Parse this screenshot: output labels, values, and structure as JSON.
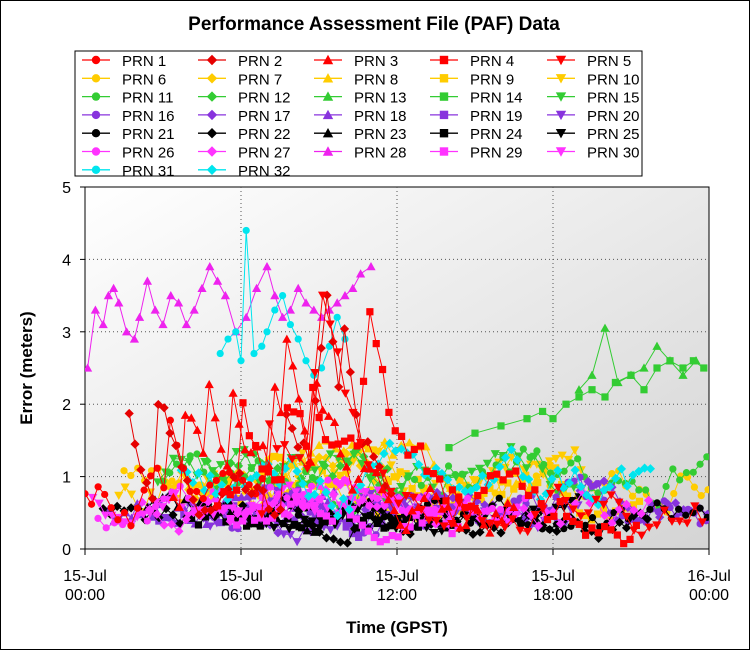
{
  "chart_data": {
    "type": "line",
    "title": "Performance Assessment File (PAF) Data",
    "xlabel": "Time (GPST)",
    "ylabel": "Error (meters)",
    "ylim": [
      0,
      5
    ],
    "yticks": [
      "0",
      "1",
      "2",
      "3",
      "4",
      "5"
    ],
    "xticks": [
      {
        "t": 0,
        "line1": "15-Jul",
        "line2": "00:00"
      },
      {
        "t": 6,
        "line1": "15-Jul",
        "line2": "06:00"
      },
      {
        "t": 12,
        "line1": "15-Jul",
        "line2": "12:00"
      },
      {
        "t": 18,
        "line1": "15-Jul",
        "line2": "18:00"
      },
      {
        "t": 24,
        "line1": "16-Jul",
        "line2": "00:00"
      }
    ],
    "xlim_hours": [
      0,
      24
    ],
    "grid": true,
    "legend_position": "top",
    "series": [
      {
        "name": "PRN 1",
        "color": "#ff0000",
        "marker": "circle"
      },
      {
        "name": "PRN 2",
        "color": "#e60000",
        "marker": "diamond"
      },
      {
        "name": "PRN 3",
        "color": "#ff0000",
        "marker": "triangle-up"
      },
      {
        "name": "PRN 4",
        "color": "#ff0000",
        "marker": "square"
      },
      {
        "name": "PRN 5",
        "color": "#ff0000",
        "marker": "triangle-down"
      },
      {
        "name": "PRN 6",
        "color": "#ffcc00",
        "marker": "circle"
      },
      {
        "name": "PRN 7",
        "color": "#ffcc00",
        "marker": "diamond"
      },
      {
        "name": "PRN 8",
        "color": "#ffcc00",
        "marker": "triangle-up"
      },
      {
        "name": "PRN 9",
        "color": "#ffcc00",
        "marker": "square"
      },
      {
        "name": "PRN 10",
        "color": "#ffcc00",
        "marker": "triangle-down"
      },
      {
        "name": "PRN 11",
        "color": "#33cc33",
        "marker": "circle"
      },
      {
        "name": "PRN 12",
        "color": "#33cc33",
        "marker": "diamond"
      },
      {
        "name": "PRN 13",
        "color": "#33cc33",
        "marker": "triangle-up"
      },
      {
        "name": "PRN 14",
        "color": "#33cc33",
        "marker": "square"
      },
      {
        "name": "PRN 15",
        "color": "#33cc33",
        "marker": "triangle-down"
      },
      {
        "name": "PRN 16",
        "color": "#8833dd",
        "marker": "circle"
      },
      {
        "name": "PRN 17",
        "color": "#8833dd",
        "marker": "diamond"
      },
      {
        "name": "PRN 18",
        "color": "#8833dd",
        "marker": "triangle-up"
      },
      {
        "name": "PRN 19",
        "color": "#8833dd",
        "marker": "square"
      },
      {
        "name": "PRN 20",
        "color": "#8833dd",
        "marker": "triangle-down"
      },
      {
        "name": "PRN 21",
        "color": "#000000",
        "marker": "circle"
      },
      {
        "name": "PRN 22",
        "color": "#000000",
        "marker": "diamond"
      },
      {
        "name": "PRN 23",
        "color": "#000000",
        "marker": "triangle-up"
      },
      {
        "name": "PRN 24",
        "color": "#000000",
        "marker": "square"
      },
      {
        "name": "PRN 25",
        "color": "#000000",
        "marker": "triangle-down"
      },
      {
        "name": "PRN 26",
        "color": "#ff33ff",
        "marker": "circle"
      },
      {
        "name": "PRN 27",
        "color": "#ff33ff",
        "marker": "diamond"
      },
      {
        "name": "PRN 28",
        "color": "#ee22ee",
        "marker": "triangle-up"
      },
      {
        "name": "PRN 29",
        "color": "#ff33ff",
        "marker": "square"
      },
      {
        "name": "PRN 30",
        "color": "#ff33ff",
        "marker": "triangle-down"
      },
      {
        "name": "PRN 31",
        "color": "#00e5ee",
        "marker": "circle"
      },
      {
        "name": "PRN 32",
        "color": "#00e5ee",
        "marker": "diamond"
      }
    ],
    "sampled_values": {
      "PRN 28": {
        "t": [
          0.1,
          0.4,
          0.7,
          0.9,
          1.1,
          1.3,
          1.6,
          1.9,
          2.1,
          2.4,
          2.7,
          3.0,
          3.3,
          3.6,
          3.9,
          4.2,
          4.5,
          4.8,
          5.1,
          5.4,
          5.8,
          6.2,
          6.6,
          7.0,
          7.3,
          7.6,
          7.9,
          8.2,
          8.5,
          8.8,
          9.1,
          9.4,
          9.7,
          10.0,
          10.3,
          10.6,
          11.0
        ],
        "y": [
          2.5,
          3.3,
          3.1,
          3.5,
          3.6,
          3.4,
          3.0,
          2.9,
          3.2,
          3.7,
          3.3,
          3.1,
          3.5,
          3.4,
          3.1,
          3.3,
          3.6,
          3.9,
          3.7,
          3.5,
          3.0,
          3.2,
          3.6,
          3.9,
          3.5,
          3.2,
          3.3,
          3.6,
          3.4,
          3.3,
          3.2,
          3.3,
          3.4,
          3.5,
          3.6,
          3.8,
          3.9
        ]
      },
      "PRN 31": {
        "t": [
          5.2,
          5.5,
          5.8,
          6.0,
          6.2,
          6.5,
          6.8,
          7.0,
          7.3,
          7.6,
          7.9,
          8.2,
          8.5,
          8.8,
          9.1,
          9.4,
          9.7,
          10.0
        ],
        "y": [
          2.7,
          2.9,
          3.0,
          2.6,
          4.4,
          2.7,
          2.8,
          3.0,
          3.3,
          3.5,
          3.1,
          2.9,
          2.6,
          2.4,
          2.5,
          2.8,
          3.2,
          2.9
        ]
      },
      "PRN 14": {
        "t": [
          14,
          15,
          16,
          17,
          17.6,
          18,
          18.5,
          19,
          19.5,
          20,
          20.4,
          21,
          21.5,
          22,
          22.5,
          23,
          23.4,
          23.8
        ],
        "y": [
          1.4,
          1.6,
          1.7,
          1.8,
          1.9,
          1.8,
          2.0,
          2.1,
          2.2,
          2.1,
          2.3,
          2.4,
          2.2,
          2.5,
          2.6,
          2.5,
          2.6,
          2.5
        ]
      },
      "PRN 13": {
        "t": [
          19.0,
          19.5,
          20.0,
          20.5,
          21.0,
          21.5,
          22.0,
          22.5,
          23.0,
          23.5
        ],
        "y": [
          2.2,
          2.4,
          3.05,
          2.3,
          2.4,
          2.5,
          2.8,
          2.6,
          2.4,
          2.6
        ]
      }
    }
  }
}
